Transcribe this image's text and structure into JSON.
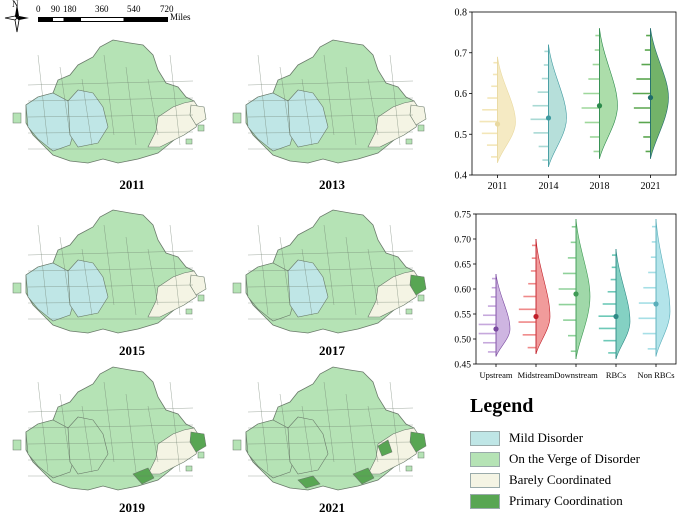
{
  "scale_bar": {
    "ticks": [
      "0",
      "90",
      "180",
      "360",
      "540",
      "720"
    ],
    "unit": "Miles",
    "north": "N"
  },
  "maps": [
    {
      "year": "2011"
    },
    {
      "year": "2013"
    },
    {
      "year": "2015"
    },
    {
      "year": "2017"
    },
    {
      "year": "2019"
    },
    {
      "year": "2021"
    }
  ],
  "legend": {
    "title": "Legend",
    "items": [
      {
        "label": "Mild Disorder",
        "color": "#bfe6e6"
      },
      {
        "label": "On the Verge of Disorder",
        "color": "#b5e3b5"
      },
      {
        "label": "Barely Coordinated",
        "color": "#f4f4e4"
      },
      {
        "label": "Primary Coordination",
        "color": "#58a653"
      }
    ]
  },
  "colors": {
    "mild": "#bfe6e6",
    "verge": "#b5e3b5",
    "barely": "#f4f4e4",
    "primary": "#58a653",
    "border": "#6a7a6a"
  },
  "chart_data": [
    {
      "type": "raincloud",
      "title": "",
      "categories": [
        "2011",
        "2014",
        "2018",
        "2021"
      ],
      "ylim": [
        0.4,
        0.8
      ],
      "yticks": [
        "0.4",
        "0.5",
        "0.6",
        "0.7",
        "0.8"
      ],
      "series": [
        {
          "name": "2011",
          "mean": 0.525,
          "min": 0.43,
          "max": 0.69,
          "mode": 0.53,
          "color": "#f3e6b8",
          "dot": "#e9d9a0"
        },
        {
          "name": "2014",
          "mean": 0.54,
          "min": 0.42,
          "max": 0.72,
          "mode": 0.54,
          "color": "#a9d9d4",
          "dot": "#3f9aa0"
        },
        {
          "name": "2018",
          "mean": 0.57,
          "min": 0.44,
          "max": 0.76,
          "mode": 0.57,
          "color": "#9ed79b",
          "dot": "#2c8a4c"
        },
        {
          "name": "2021",
          "mean": 0.59,
          "min": 0.44,
          "max": 0.76,
          "mode": 0.59,
          "color": "#5aa64f",
          "dot": "#1f6b6b"
        }
      ]
    },
    {
      "type": "raincloud",
      "title": "",
      "categories": [
        "Upstream",
        "Midstream",
        "Downstream",
        "RBCs",
        "Non RBCs"
      ],
      "ylim": [
        0.45,
        0.75
      ],
      "yticks": [
        "0.45",
        "0.50",
        "0.55",
        "0.60",
        "0.65",
        "0.70",
        "0.75"
      ],
      "series": [
        {
          "name": "Upstream",
          "mean": 0.52,
          "min": 0.465,
          "max": 0.63,
          "mode": 0.52,
          "color": "#c6a8dc",
          "dot": "#7a4aa0"
        },
        {
          "name": "Midstream",
          "mean": 0.545,
          "min": 0.47,
          "max": 0.7,
          "mode": 0.545,
          "color": "#ef8a8a",
          "dot": "#c0202a"
        },
        {
          "name": "Downstream",
          "mean": 0.59,
          "min": 0.46,
          "max": 0.74,
          "mode": 0.585,
          "color": "#8fd19a",
          "dot": "#3f9a55"
        },
        {
          "name": "RBCs",
          "mean": 0.545,
          "min": 0.46,
          "max": 0.68,
          "mode": 0.535,
          "color": "#6ec9b8",
          "dot": "#2f8a86"
        },
        {
          "name": "Non RBCs",
          "mean": 0.57,
          "min": 0.465,
          "max": 0.74,
          "mode": 0.555,
          "color": "#a6dfe6",
          "dot": "#5aaeba"
        }
      ]
    }
  ]
}
